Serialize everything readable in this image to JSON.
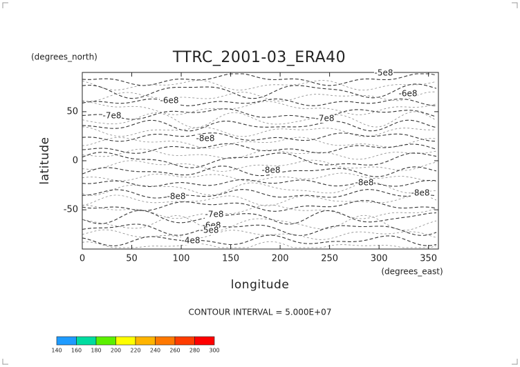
{
  "chart_data": {
    "type": "contour",
    "title": "TTRC_2001-03_ERA40",
    "y_units": "(degrees_north)",
    "x_units": "(degrees_east)",
    "ylabel": "latitude",
    "xlabel": "longitude",
    "note": "CONTOUR INTERVAL = 5.000E+07",
    "xlim": [
      0,
      360
    ],
    "xticks": [
      0,
      50,
      100,
      150,
      200,
      250,
      300,
      350
    ],
    "ylim": [
      -90,
      90
    ],
    "yticks": [
      -50,
      0,
      50
    ],
    "contour_labels": [
      {
        "value": -500000000,
        "label": "-5e8"
      },
      {
        "value": -600000000,
        "label": "-6e8"
      },
      {
        "value": -600000000,
        "label": "-6e8"
      },
      {
        "value": -700000000,
        "label": "-7e8"
      },
      {
        "value": -700000000,
        "label": "-7e8"
      },
      {
        "value": -800000000,
        "label": "-8e8"
      },
      {
        "value": -800000000,
        "label": "-8e8"
      },
      {
        "value": -800000000,
        "label": "-8e8"
      },
      {
        "value": -800000000,
        "label": "-8e8"
      },
      {
        "value": -800000000,
        "label": "-8e8"
      },
      {
        "value": -700000000,
        "label": "-7e8"
      },
      {
        "value": -600000000,
        "label": "-6e8"
      },
      {
        "value": -500000000,
        "label": "-5e8"
      },
      {
        "value": -400000000,
        "label": "-4e8"
      }
    ],
    "colorbar": {
      "ticks": [
        140,
        160,
        180,
        200,
        220,
        240,
        260,
        280,
        300
      ],
      "colors": [
        "#1e9bff",
        "#00dca0",
        "#5cf000",
        "#ffff00",
        "#ffb400",
        "#ff7800",
        "#ff3c00",
        "#ff0000"
      ]
    }
  }
}
